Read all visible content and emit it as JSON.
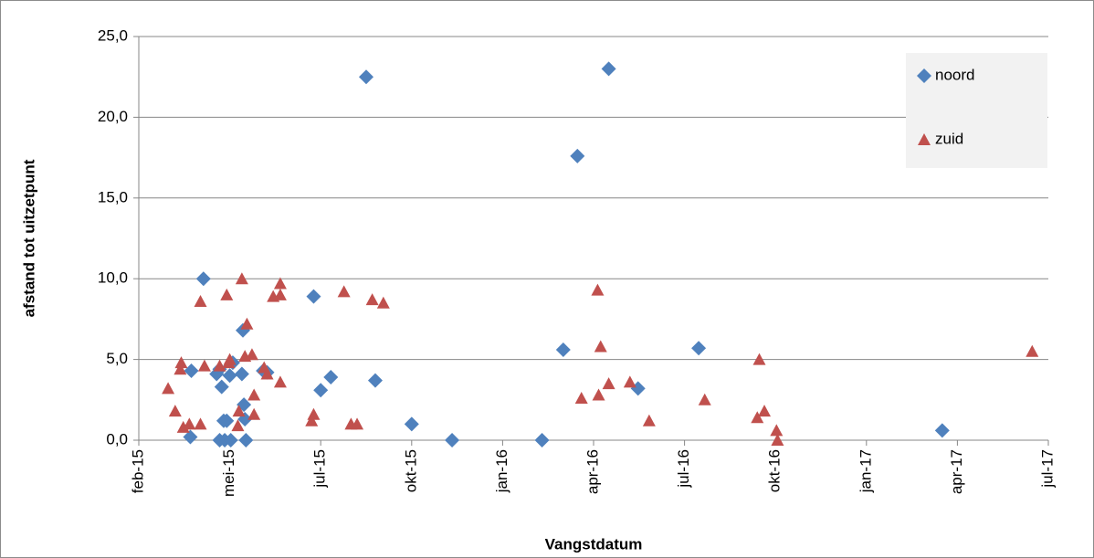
{
  "chart_data": {
    "type": "scatter",
    "x_label": "Vangstdatum",
    "y_label": "afstand tot uitzetpunt",
    "xlim": [
      42036,
      42936
    ],
    "xticks": [
      {
        "value": 42036,
        "label": "feb-15"
      },
      {
        "value": 42126,
        "label": "mei-15"
      },
      {
        "value": 42216,
        "label": "jul-15"
      },
      {
        "value": 42306,
        "label": "okt-15"
      },
      {
        "value": 42396,
        "label": "jan-16"
      },
      {
        "value": 42486,
        "label": "apr-16"
      },
      {
        "value": 42576,
        "label": "jul-16"
      },
      {
        "value": 42666,
        "label": "okt-16"
      },
      {
        "value": 42756,
        "label": "jan-17"
      },
      {
        "value": 42846,
        "label": "apr-17"
      },
      {
        "value": 42936,
        "label": "jul-17"
      }
    ],
    "ylim": [
      0,
      25
    ],
    "yticks": [
      {
        "value": 0,
        "label": "0,0"
      },
      {
        "value": 5,
        "label": "5,0"
      },
      {
        "value": 10,
        "label": "10,0"
      },
      {
        "value": 15,
        "label": "15,0"
      },
      {
        "value": 20,
        "label": "20,0"
      },
      {
        "value": 25,
        "label": "25,0"
      }
    ],
    "grid": true,
    "legend": "top-right",
    "series": [
      {
        "name": "noord",
        "color": "#4f81bd",
        "marker": "diamond",
        "x": [
          42088,
          42087,
          42100,
          42113,
          42118,
          42116,
          42120,
          42123,
          42116,
          42121,
          42127,
          42129,
          42126,
          42139,
          42138,
          42140,
          42141,
          42142,
          42163,
          42159,
          42209,
          42216,
          42226,
          42261,
          42270,
          42306,
          42346,
          42435,
          42456,
          42470,
          42501,
          42530,
          42590,
          42831
        ],
        "values": [
          4.3,
          0.2,
          10.0,
          4.1,
          3.3,
          4.4,
          1.2,
          1.2,
          0,
          0,
          0,
          4.8,
          4.0,
          6.8,
          4.1,
          2.2,
          1.3,
          0,
          4.2,
          4.3,
          8.9,
          3.1,
          3.9,
          22.5,
          3.7,
          1.0,
          0,
          0,
          5.6,
          17.6,
          23.0,
          3.2,
          5.7,
          0.6
        ]
      },
      {
        "name": "zuid",
        "color": "#c0504d",
        "marker": "triangle",
        "x": [
          42065,
          42072,
          42077,
          42078,
          42080,
          42086,
          42097,
          42097,
          42101,
          42116,
          42123,
          42125,
          42126,
          42134,
          42135,
          42138,
          42141,
          42143,
          42148,
          42150,
          42150,
          42160,
          42163,
          42169,
          42176,
          42176,
          42176,
          42207,
          42209,
          42239,
          42246,
          42252,
          42267,
          42278,
          42474,
          42490,
          42491,
          42493,
          42501,
          42522,
          42541,
          42596,
          42648,
          42650,
          42655,
          42667,
          42668,
          42920
        ],
        "values": [
          3.2,
          1.8,
          4.4,
          4.8,
          0.8,
          1.0,
          8.6,
          1.0,
          4.6,
          4.6,
          9.0,
          4.8,
          5.0,
          0.9,
          1.8,
          10.0,
          5.2,
          7.2,
          5.3,
          2.8,
          1.6,
          4.5,
          4.1,
          8.9,
          9.0,
          9.7,
          3.6,
          1.2,
          1.6,
          9.2,
          1.0,
          1.0,
          8.7,
          8.5,
          2.6,
          9.3,
          2.8,
          5.8,
          3.5,
          3.6,
          1.2,
          2.5,
          1.4,
          5.0,
          1.8,
          0.6,
          0.0,
          5.5
        ]
      }
    ]
  }
}
